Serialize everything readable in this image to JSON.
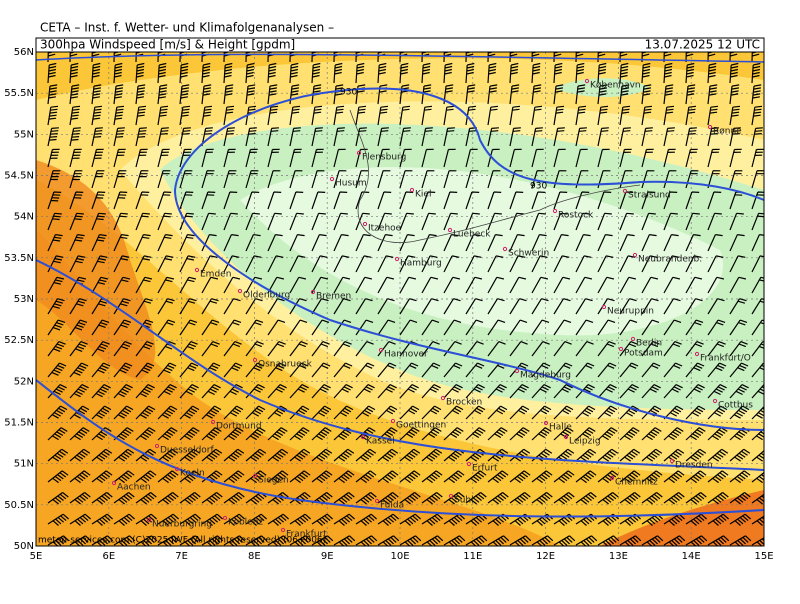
{
  "header": {
    "institute": "CETA – Inst. f. Wetter- und Klimafolgenanalysen –",
    "product": "300hpa Windspeed [m/s] & Height [gpdm]",
    "valid": "13.07.2025 12 UTC"
  },
  "footer": {
    "credit": "meteo-services.com   (C)2025 IWF (All rights reserved) (06+006)"
  },
  "map": {
    "xlim": [
      5,
      15
    ],
    "ylim": [
      50,
      56
    ],
    "xticks": [
      {
        "value": 5,
        "label": "5E"
      },
      {
        "value": 6,
        "label": "6E"
      },
      {
        "value": 7,
        "label": "7E"
      },
      {
        "value": 8,
        "label": "8E"
      },
      {
        "value": 9,
        "label": "9E"
      },
      {
        "value": 10,
        "label": "10E"
      },
      {
        "value": 11,
        "label": "11E"
      },
      {
        "value": 12,
        "label": "12E"
      },
      {
        "value": 13,
        "label": "13E"
      },
      {
        "value": 14,
        "label": "14E"
      },
      {
        "value": 15,
        "label": "15E"
      }
    ],
    "yticks": [
      {
        "value": 56,
        "label": "56N"
      },
      {
        "value": 55.5,
        "label": "55.5N"
      },
      {
        "value": 55,
        "label": "55N"
      },
      {
        "value": 54.5,
        "label": "54.5N"
      },
      {
        "value": 54,
        "label": "54N"
      },
      {
        "value": 53.5,
        "label": "53.5N"
      },
      {
        "value": 53,
        "label": "53N"
      },
      {
        "value": 52.5,
        "label": "52.5N"
      },
      {
        "value": 52,
        "label": "52N"
      },
      {
        "value": 51.5,
        "label": "51.5N"
      },
      {
        "value": 51,
        "label": "51N"
      },
      {
        "value": 50.5,
        "label": "50.5N"
      },
      {
        "value": 50,
        "label": "50N"
      }
    ],
    "contour_labels": [
      "930",
      "930"
    ],
    "cities": [
      "København",
      "Rønne",
      "Flensburg",
      "Husum",
      "Kiel",
      "Stralsund",
      "Rostock",
      "Itzehoe",
      "Luebeck",
      "Schwerin",
      "Hamburg",
      "Neubrandenb.",
      "Emden",
      "Oldenburg",
      "Bremen",
      "Neuruppin",
      "Berlin",
      "Potsdam",
      "Hannover",
      "Frankfurt/O",
      "Osnabrueck",
      "Magdeburg",
      "Brocken",
      "Cottbus",
      "Dortmund",
      "Goettingen",
      "Halle",
      "Kassel",
      "Leipzig",
      "Duesseldorf",
      "Erfurt",
      "Dresden",
      "Koeln",
      "Siegen",
      "Chemnitz",
      "Aachen",
      "Suhl",
      "Fulda",
      "Koblenz",
      "Nuerburgring",
      "Frankfurt"
    ]
  }
}
